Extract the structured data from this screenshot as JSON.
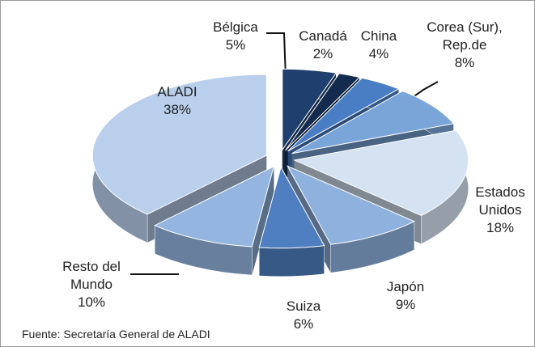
{
  "chart_data": {
    "type": "pie",
    "categories": [
      "Bélgica",
      "Canadá",
      "China",
      "Corea (Sur), Rep.de",
      "Estados Unidos",
      "Japón",
      "Suiza",
      "Resto del Mundo",
      "ALADI"
    ],
    "values": [
      5,
      2,
      4,
      8,
      18,
      9,
      6,
      10,
      38
    ],
    "value_labels": [
      "5%",
      "2%",
      "4%",
      "8%",
      "18%",
      "9%",
      "6%",
      "10%",
      "38%"
    ],
    "colors": [
      "#1f3f6e",
      "#132b4f",
      "#4a7ec4",
      "#7aa5d8",
      "#d5e2f2",
      "#8fb1de",
      "#4f7fc0",
      "#94b5e0",
      "#b9cfeb"
    ],
    "source": "Fuente:  Secretaría General de ALADI"
  }
}
